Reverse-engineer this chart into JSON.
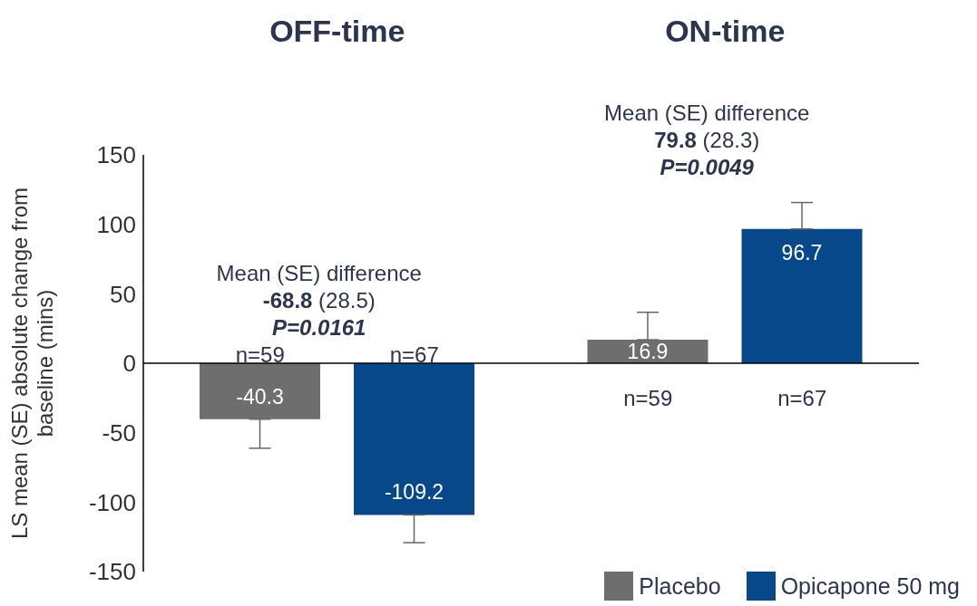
{
  "chart_data": {
    "type": "bar",
    "categories": [
      "OFF-time",
      "ON-time"
    ],
    "ylabel": "LS mean (SE) absolute change from baseline (mins)",
    "ylim": [
      -150,
      150
    ],
    "yticks": [
      -150,
      -100,
      -50,
      0,
      50,
      100,
      150
    ],
    "legend": "bottom right",
    "data_labels": true,
    "series": [
      {
        "name": "Placebo",
        "color": "#6e6e6e",
        "values": [
          -40.3,
          16.9
        ],
        "errors": [
          [
            -61.2,
            -40.3
          ],
          [
            16.9,
            36.7
          ]
        ]
      },
      {
        "name": "Opicapone 50 mg",
        "color": "#07488a",
        "values": [
          -109.2,
          96.7
        ],
        "errors": [
          [
            -129.2,
            -109.2
          ],
          [
            96.7,
            115.7
          ]
        ]
      }
    ],
    "annotations": [
      "Mean (SE) difference\n-68.8 (28.5)\nP=0.0161",
      "Mean (SE) difference\n79.8 (28.3)\nP=0.0049",
      "n=59",
      "n=67",
      "n=59",
      "n=67"
    ]
  }
}
